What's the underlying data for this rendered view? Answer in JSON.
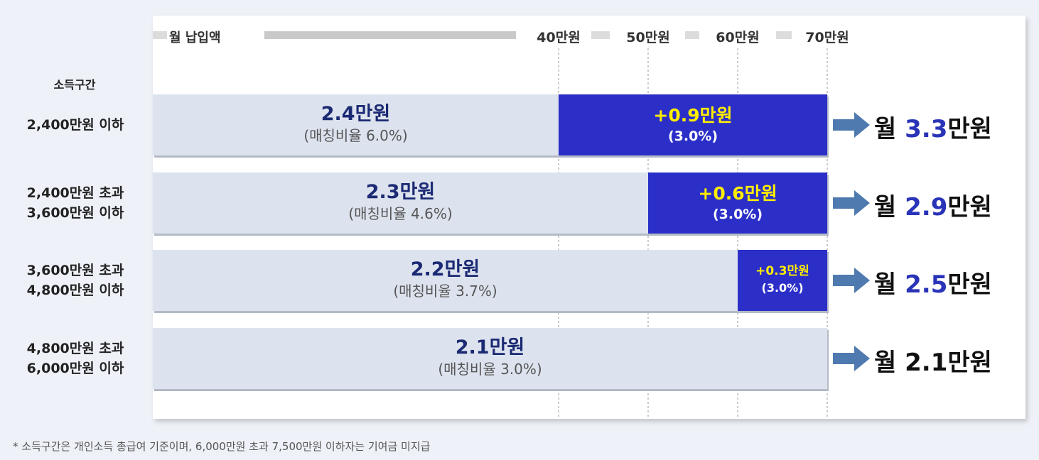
{
  "chart_data": {
    "type": "bar",
    "orientation": "horizontal",
    "stacked": true,
    "x_title": "월 납입액",
    "x_ticks": [
      "40만원",
      "50만원",
      "60만원",
      "70만원"
    ],
    "x_tick_values": [
      40,
      50,
      60,
      70
    ],
    "row_header": "소득구간",
    "categories": [
      [
        "2,400만원 이하"
      ],
      [
        "2,400만원 초과",
        "3,600만원 이하"
      ],
      [
        "3,600만원 초과",
        "4,800만원 이하"
      ],
      [
        "4,800만원 초과",
        "6,000만원 이하"
      ]
    ],
    "bar_end_contribution": [
      70,
      70,
      70,
      70
    ],
    "contribution_breakpoint": [
      40,
      50,
      60,
      70
    ],
    "series": [
      {
        "values_label": [
          "2.4만원",
          "2.3만원",
          "2.2만원",
          "2.1만원"
        ],
        "values": [
          2.4,
          2.3,
          2.2,
          2.1
        ],
        "ratio_label": [
          "(매칭비율 6.0%)",
          "(매칭비율 4.6%)",
          "(매칭비율 3.7%)",
          "(매칭비율 3.0%)"
        ],
        "color": "#dde3ee"
      },
      {
        "values_label": [
          "+0.9만원",
          "+0.6만원",
          "+0.3만원",
          ""
        ],
        "values": [
          0.9,
          0.6,
          0.3,
          0
        ],
        "ratio_label": [
          "(3.0%)",
          "(3.0%)",
          "(3.0%)",
          ""
        ],
        "color": "#2b2fc8"
      }
    ],
    "totals": [
      {
        "prefix": "월 ",
        "num": "3.3",
        "unit": "만원",
        "value": 3.3
      },
      {
        "prefix": "월 ",
        "num": "2.9",
        "unit": "만원",
        "value": 2.9
      },
      {
        "prefix": "월 ",
        "num": "2.5",
        "unit": "만원",
        "value": 2.5
      },
      {
        "prefix": "월 ",
        "num": "2.1",
        "unit": "만원",
        "value": 2.1
      }
    ],
    "colors": {
      "arrow": "#4f7ab0",
      "highlight_text": "#ffee00",
      "total_num": "#2a34b8"
    }
  },
  "footnote": "* 소득구간은 개인소득 총급여 기준이며, 6,000만원 초과 7,500만원 이하자는 기여금 미지급"
}
